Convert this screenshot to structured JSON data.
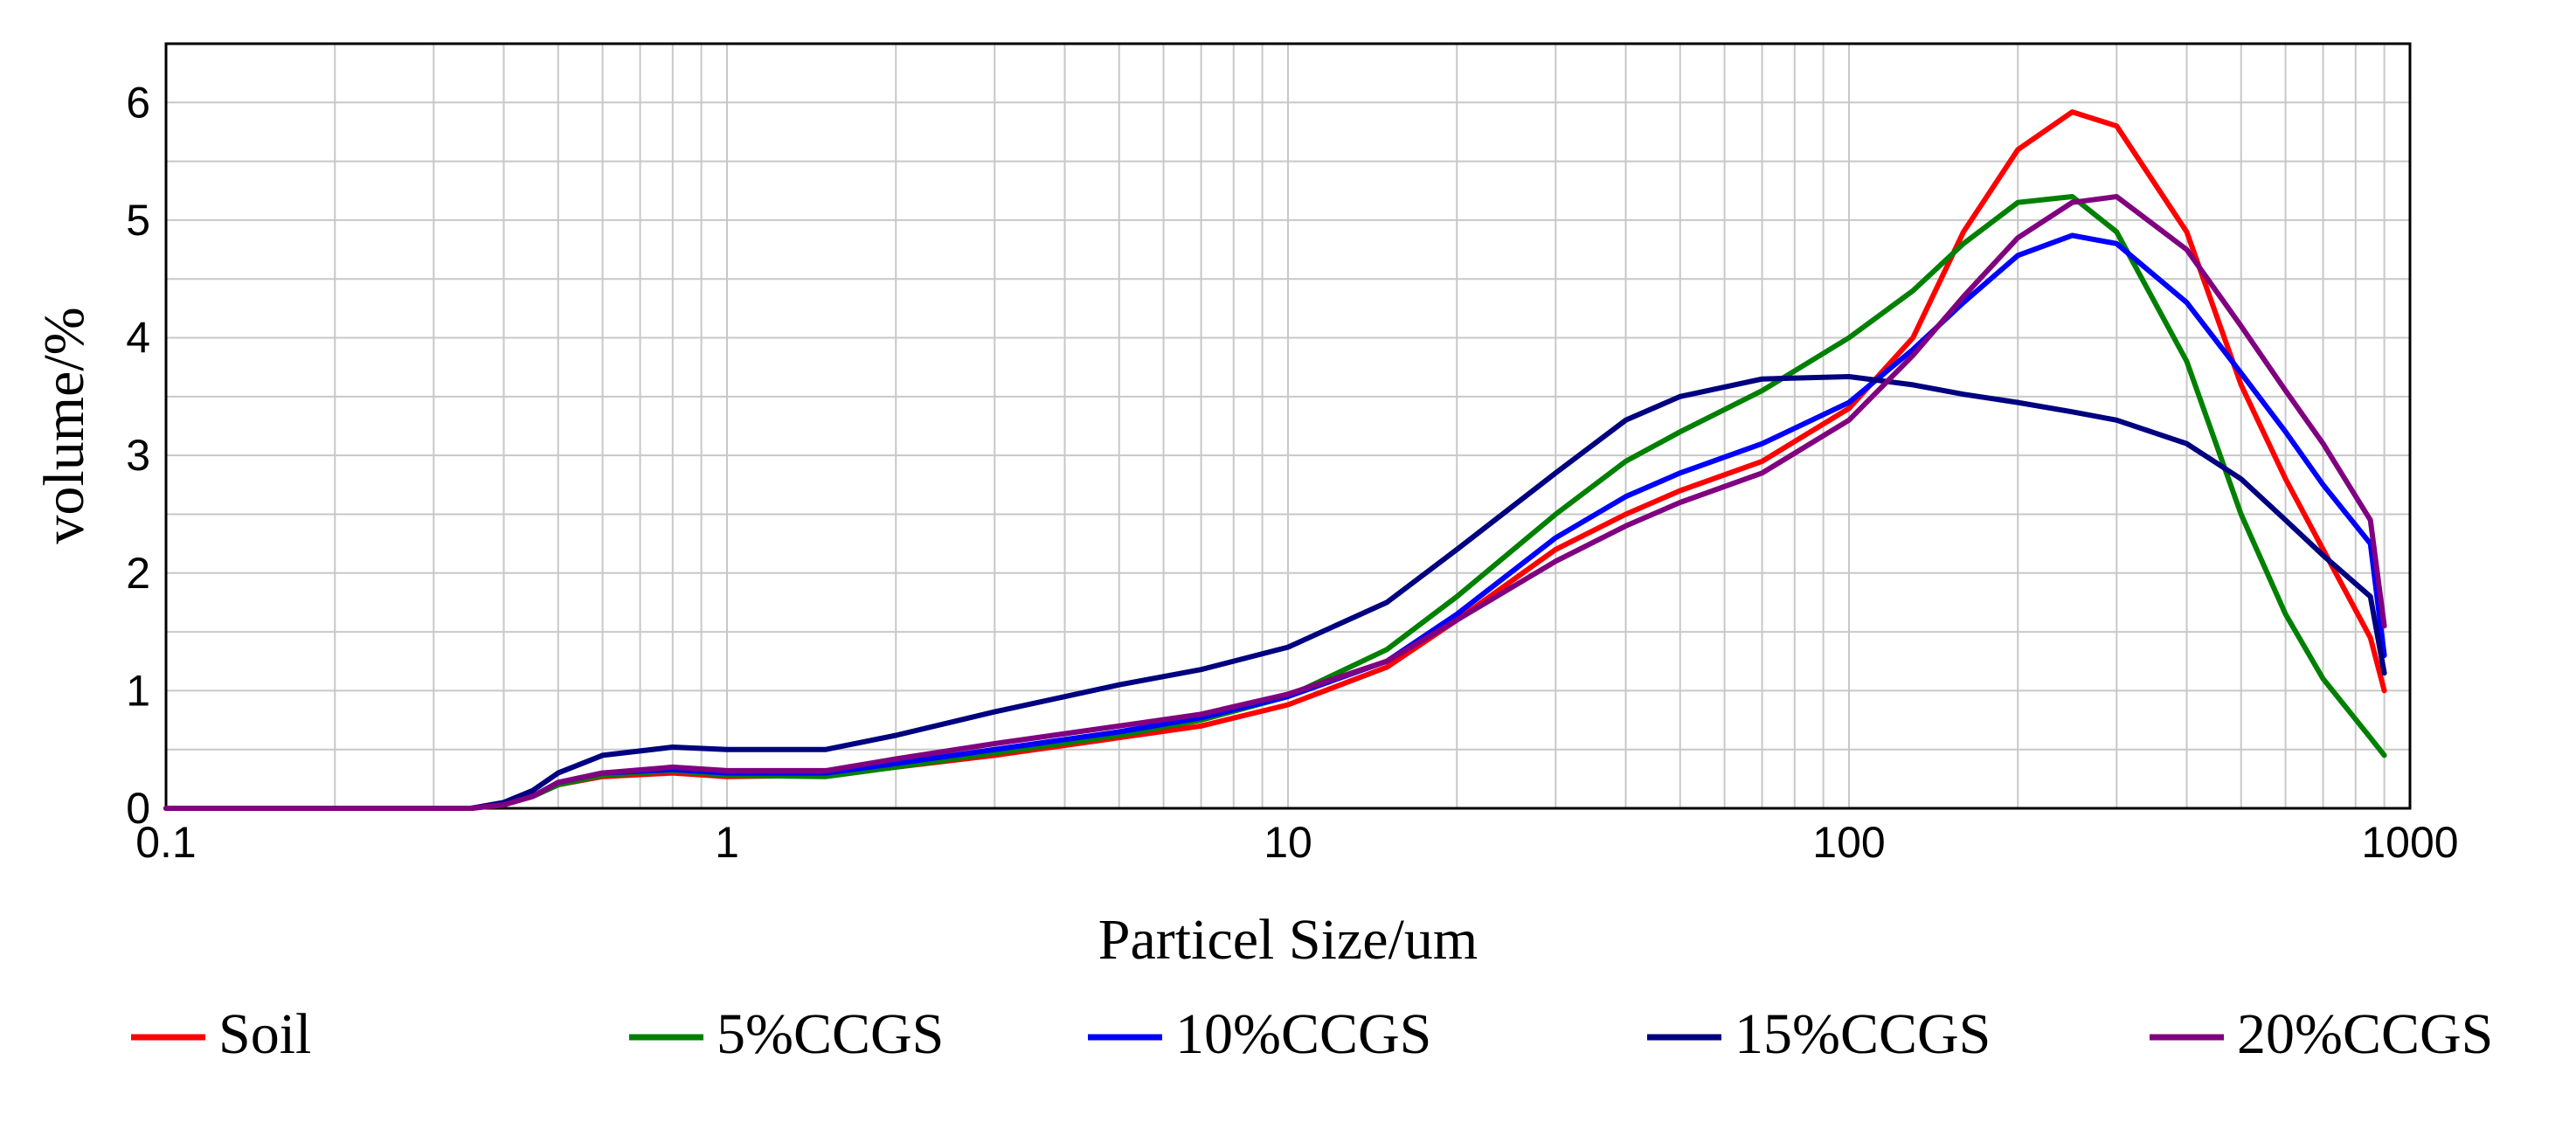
{
  "chart_data": {
    "type": "line",
    "title": "",
    "xlabel": "Particel Size/um",
    "ylabel": "volume/%",
    "xscale": "log",
    "xlim": [
      0.1,
      1000
    ],
    "ylim": [
      0,
      6.5
    ],
    "x_ticks": [
      0.1,
      1,
      10,
      100,
      1000
    ],
    "x_tick_labels": [
      "0.1",
      "1",
      "10",
      "100",
      "1000"
    ],
    "y_ticks": [
      0,
      1,
      2,
      3,
      4,
      5,
      6
    ],
    "y_tick_labels": [
      "0",
      "1",
      "2",
      "3",
      "4",
      "5",
      "6"
    ],
    "grid": true,
    "legend_position": "bottom",
    "series": [
      {
        "name": "Soil",
        "color": "#ff0000",
        "points": [
          [
            0.1,
            0
          ],
          [
            0.35,
            0
          ],
          [
            0.4,
            0.03
          ],
          [
            0.45,
            0.1
          ],
          [
            0.5,
            0.2
          ],
          [
            0.6,
            0.27
          ],
          [
            0.8,
            0.3
          ],
          [
            1,
            0.27
          ],
          [
            1.5,
            0.28
          ],
          [
            2,
            0.35
          ],
          [
            3,
            0.45
          ],
          [
            5,
            0.6
          ],
          [
            7,
            0.7
          ],
          [
            10,
            0.88
          ],
          [
            15,
            1.2
          ],
          [
            20,
            1.6
          ],
          [
            30,
            2.2
          ],
          [
            40,
            2.5
          ],
          [
            50,
            2.7
          ],
          [
            70,
            2.95
          ],
          [
            100,
            3.4
          ],
          [
            130,
            4.0
          ],
          [
            160,
            4.9
          ],
          [
            200,
            5.6
          ],
          [
            250,
            5.92
          ],
          [
            300,
            5.8
          ],
          [
            400,
            4.9
          ],
          [
            500,
            3.6
          ],
          [
            600,
            2.8
          ],
          [
            700,
            2.2
          ],
          [
            850,
            1.45
          ],
          [
            900,
            1.0
          ]
        ]
      },
      {
        "name": "5%CCGS",
        "color": "#008000",
        "points": [
          [
            0.1,
            0
          ],
          [
            0.35,
            0
          ],
          [
            0.4,
            0.04
          ],
          [
            0.45,
            0.1
          ],
          [
            0.5,
            0.2
          ],
          [
            0.6,
            0.28
          ],
          [
            0.8,
            0.32
          ],
          [
            1,
            0.28
          ],
          [
            1.5,
            0.27
          ],
          [
            2,
            0.35
          ],
          [
            3,
            0.47
          ],
          [
            5,
            0.62
          ],
          [
            7,
            0.75
          ],
          [
            10,
            0.95
          ],
          [
            15,
            1.35
          ],
          [
            20,
            1.8
          ],
          [
            30,
            2.5
          ],
          [
            40,
            2.95
          ],
          [
            50,
            3.2
          ],
          [
            70,
            3.55
          ],
          [
            100,
            4.0
          ],
          [
            130,
            4.4
          ],
          [
            160,
            4.8
          ],
          [
            200,
            5.15
          ],
          [
            250,
            5.2
          ],
          [
            300,
            4.9
          ],
          [
            400,
            3.8
          ],
          [
            500,
            2.5
          ],
          [
            600,
            1.65
          ],
          [
            700,
            1.1
          ],
          [
            850,
            0.6
          ],
          [
            900,
            0.45
          ]
        ]
      },
      {
        "name": "10%CCGS",
        "color": "#0000ff",
        "points": [
          [
            0.1,
            0
          ],
          [
            0.35,
            0
          ],
          [
            0.4,
            0.04
          ],
          [
            0.45,
            0.1
          ],
          [
            0.5,
            0.22
          ],
          [
            0.6,
            0.3
          ],
          [
            0.8,
            0.33
          ],
          [
            1,
            0.3
          ],
          [
            1.5,
            0.3
          ],
          [
            2,
            0.38
          ],
          [
            3,
            0.5
          ],
          [
            5,
            0.65
          ],
          [
            7,
            0.77
          ],
          [
            10,
            0.95
          ],
          [
            15,
            1.25
          ],
          [
            20,
            1.65
          ],
          [
            30,
            2.3
          ],
          [
            40,
            2.65
          ],
          [
            50,
            2.85
          ],
          [
            70,
            3.1
          ],
          [
            100,
            3.45
          ],
          [
            130,
            3.9
          ],
          [
            160,
            4.3
          ],
          [
            200,
            4.7
          ],
          [
            250,
            4.87
          ],
          [
            300,
            4.8
          ],
          [
            400,
            4.3
          ],
          [
            500,
            3.7
          ],
          [
            600,
            3.2
          ],
          [
            700,
            2.75
          ],
          [
            850,
            2.25
          ],
          [
            900,
            1.3
          ]
        ]
      },
      {
        "name": "15%CCGS",
        "color": "#000080",
        "points": [
          [
            0.1,
            0
          ],
          [
            0.35,
            0
          ],
          [
            0.4,
            0.05
          ],
          [
            0.45,
            0.15
          ],
          [
            0.5,
            0.3
          ],
          [
            0.6,
            0.45
          ],
          [
            0.8,
            0.52
          ],
          [
            1,
            0.5
          ],
          [
            1.5,
            0.5
          ],
          [
            2,
            0.62
          ],
          [
            3,
            0.82
          ],
          [
            5,
            1.05
          ],
          [
            7,
            1.18
          ],
          [
            10,
            1.37
          ],
          [
            15,
            1.75
          ],
          [
            20,
            2.2
          ],
          [
            30,
            2.85
          ],
          [
            40,
            3.3
          ],
          [
            50,
            3.5
          ],
          [
            70,
            3.65
          ],
          [
            100,
            3.67
          ],
          [
            130,
            3.6
          ],
          [
            160,
            3.52
          ],
          [
            200,
            3.45
          ],
          [
            250,
            3.37
          ],
          [
            300,
            3.3
          ],
          [
            400,
            3.1
          ],
          [
            500,
            2.8
          ],
          [
            600,
            2.45
          ],
          [
            700,
            2.15
          ],
          [
            850,
            1.8
          ],
          [
            900,
            1.15
          ]
        ]
      },
      {
        "name": "20%CCGS",
        "color": "#800080",
        "points": [
          [
            0.1,
            0
          ],
          [
            0.35,
            0
          ],
          [
            0.4,
            0.03
          ],
          [
            0.45,
            0.1
          ],
          [
            0.5,
            0.22
          ],
          [
            0.6,
            0.3
          ],
          [
            0.8,
            0.35
          ],
          [
            1,
            0.32
          ],
          [
            1.5,
            0.32
          ],
          [
            2,
            0.42
          ],
          [
            3,
            0.55
          ],
          [
            5,
            0.7
          ],
          [
            7,
            0.8
          ],
          [
            10,
            0.97
          ],
          [
            15,
            1.25
          ],
          [
            20,
            1.6
          ],
          [
            30,
            2.1
          ],
          [
            40,
            2.4
          ],
          [
            50,
            2.6
          ],
          [
            70,
            2.85
          ],
          [
            100,
            3.3
          ],
          [
            130,
            3.85
          ],
          [
            160,
            4.35
          ],
          [
            200,
            4.85
          ],
          [
            250,
            5.15
          ],
          [
            300,
            5.2
          ],
          [
            400,
            4.75
          ],
          [
            500,
            4.1
          ],
          [
            600,
            3.55
          ],
          [
            700,
            3.1
          ],
          [
            850,
            2.45
          ],
          [
            900,
            1.55
          ]
        ]
      }
    ]
  }
}
